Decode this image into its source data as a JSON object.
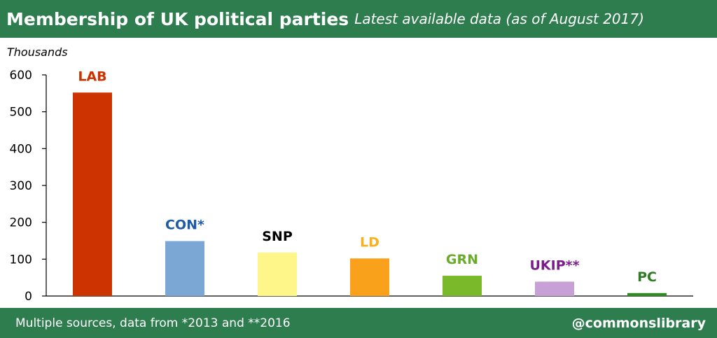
{
  "header": {
    "title": "Membership of UK political parties",
    "subtitle": "Latest available data (as of August 2017)"
  },
  "footer": {
    "source": "Multiple sources, data from *2013 and **2016",
    "handle": "@commonslibrary"
  },
  "chart_data": {
    "type": "bar",
    "title": "Membership of UK political parties",
    "subtitle": "Latest available data (as of August 2017)",
    "ylabel": "Thousands",
    "xlabel": "",
    "ylim": [
      0,
      600
    ],
    "yticks": [
      0,
      100,
      200,
      300,
      400,
      500,
      600
    ],
    "grid": false,
    "legend": "none",
    "categories": [
      "LAB",
      "CON*",
      "SNP",
      "LD",
      "GRN",
      "UKIP**",
      "PC"
    ],
    "values": [
      552,
      149,
      118,
      102,
      55,
      39,
      8
    ],
    "colors": [
      "#cc3300",
      "#7ba7d4",
      "#fff68a",
      "#f9a11b",
      "#7ab929",
      "#c7a0d6",
      "#2e8b22"
    ],
    "label_colors": [
      "#cc3300",
      "#1f5ca8",
      "#000000",
      "#f9b01b",
      "#6aab2b",
      "#7b1e8c",
      "#2e7d22"
    ]
  }
}
